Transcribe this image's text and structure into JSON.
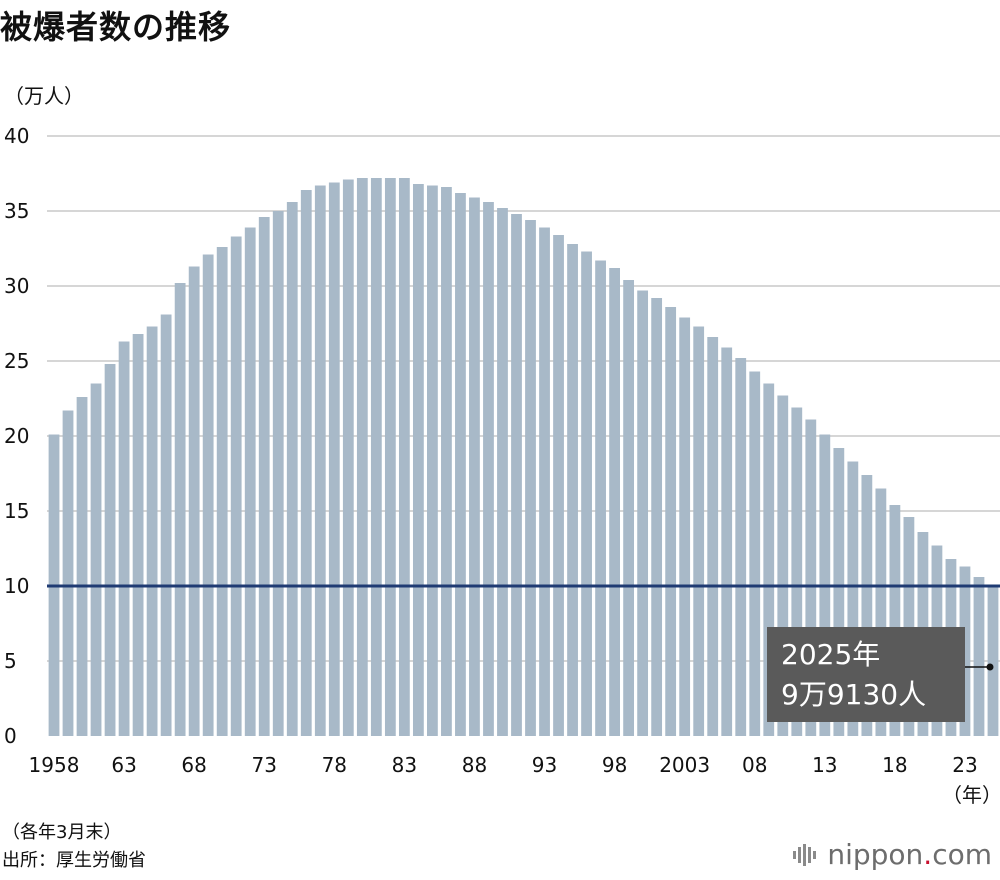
{
  "title": "被爆者数の推移",
  "unit_label": "（万人）",
  "x_unit_label": "（年）",
  "footnote_1": "（各年3月末）",
  "footnote_2": "出所：厚生労働省",
  "logo": {
    "name": "nippon",
    "dot": ".",
    "suffix": "com",
    "icon": "nippon-logo-mark"
  },
  "annotation": {
    "line1": "2025年",
    "line2": "9万9130人"
  },
  "colors": {
    "bar": "#a8b9c8",
    "reference_line": "#1f3b73",
    "grid": "#c8c8c8",
    "callout_bg": "#5a5a5a",
    "callout_text": "#ffffff",
    "logo_dot": "#c8102e"
  },
  "chart_data": {
    "type": "bar",
    "title": "被爆者数の推移",
    "ylabel": "（万人）",
    "xlabel": "（年）",
    "ylim": [
      0,
      40
    ],
    "yticks": [
      0,
      5,
      10,
      15,
      20,
      25,
      30,
      35,
      40
    ],
    "grid": true,
    "reference_line": 10,
    "x_tick_labels": [
      {
        "year": 1958,
        "label": "1958"
      },
      {
        "year": 1963,
        "label": "63"
      },
      {
        "year": 1968,
        "label": "68"
      },
      {
        "year": 1973,
        "label": "73"
      },
      {
        "year": 1978,
        "label": "78"
      },
      {
        "year": 1983,
        "label": "83"
      },
      {
        "year": 1988,
        "label": "88"
      },
      {
        "year": 1993,
        "label": "93"
      },
      {
        "year": 1998,
        "label": "98"
      },
      {
        "year": 2003,
        "label": "2003"
      },
      {
        "year": 2008,
        "label": "08"
      },
      {
        "year": 2013,
        "label": "13"
      },
      {
        "year": 2018,
        "label": "18"
      },
      {
        "year": 2023,
        "label": "23"
      }
    ],
    "categories": [
      1958,
      1959,
      1960,
      1961,
      1962,
      1963,
      1964,
      1965,
      1966,
      1967,
      1968,
      1969,
      1970,
      1971,
      1972,
      1973,
      1974,
      1975,
      1976,
      1977,
      1978,
      1979,
      1980,
      1981,
      1982,
      1983,
      1984,
      1985,
      1986,
      1987,
      1988,
      1989,
      1990,
      1991,
      1992,
      1993,
      1994,
      1995,
      1996,
      1997,
      1998,
      1999,
      2000,
      2001,
      2002,
      2003,
      2004,
      2005,
      2006,
      2007,
      2008,
      2009,
      2010,
      2011,
      2012,
      2013,
      2014,
      2015,
      2016,
      2017,
      2018,
      2019,
      2020,
      2021,
      2022,
      2023,
      2024,
      2025
    ],
    "values": [
      20.1,
      21.7,
      22.6,
      23.5,
      24.8,
      26.3,
      26.8,
      27.3,
      28.1,
      30.2,
      31.3,
      32.1,
      32.6,
      33.3,
      33.9,
      34.6,
      35.0,
      35.6,
      36.4,
      36.7,
      36.9,
      37.1,
      37.2,
      37.2,
      37.2,
      37.2,
      36.8,
      36.7,
      36.6,
      36.2,
      35.9,
      35.6,
      35.2,
      34.8,
      34.4,
      33.9,
      33.4,
      32.8,
      32.3,
      31.7,
      31.2,
      30.4,
      29.7,
      29.2,
      28.6,
      27.9,
      27.3,
      26.6,
      25.9,
      25.2,
      24.3,
      23.5,
      22.7,
      21.9,
      21.1,
      20.1,
      19.2,
      18.3,
      17.4,
      16.5,
      15.4,
      14.6,
      13.6,
      12.7,
      11.8,
      11.3,
      10.6,
      9.913
    ]
  }
}
